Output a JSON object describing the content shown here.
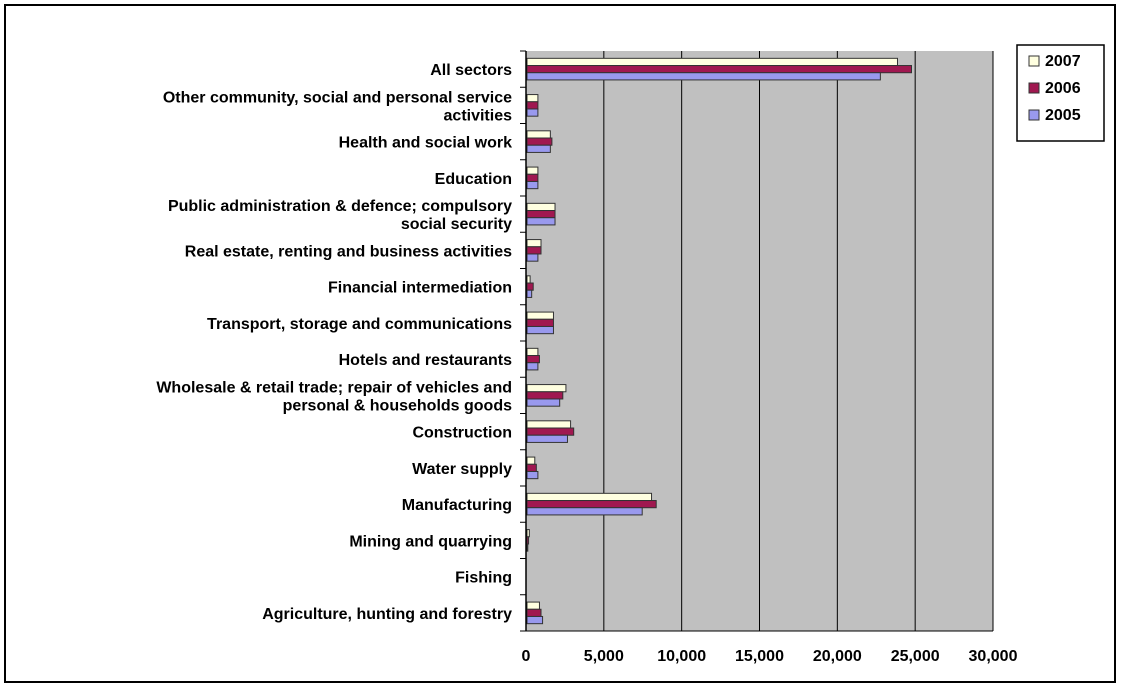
{
  "chart_data": {
    "type": "bar",
    "orientation": "horizontal",
    "categories": [
      [
        "All sectors"
      ],
      [
        "Other community, social and personal service",
        "activities"
      ],
      [
        "Health and social work"
      ],
      [
        "Education"
      ],
      [
        "Public administration & defence; compulsory",
        "social security"
      ],
      [
        "Real estate, renting and business activities"
      ],
      [
        "Financial intermediation"
      ],
      [
        "Transport, storage and communications"
      ],
      [
        "Hotels and restaurants"
      ],
      [
        "Wholesale & retail trade; repair of vehicles and",
        "personal & households goods"
      ],
      [
        "Construction"
      ],
      [
        "Water supply"
      ],
      [
        "Manufacturing"
      ],
      [
        "Mining and quarrying"
      ],
      [
        "Fishing"
      ],
      [
        "Agriculture, hunting and forestry"
      ]
    ],
    "series": [
      {
        "name": "2007",
        "color": "#ffffe0",
        "values": [
          23800,
          700,
          1500,
          700,
          1800,
          900,
          200,
          1700,
          700,
          2500,
          2800,
          500,
          8000,
          150,
          0,
          800
        ]
      },
      {
        "name": "2006",
        "color": "#a01850",
        "values": [
          24700,
          700,
          1600,
          700,
          1800,
          900,
          400,
          1700,
          800,
          2300,
          3000,
          600,
          8300,
          100,
          0,
          900
        ]
      },
      {
        "name": "2005",
        "color": "#9999ee",
        "values": [
          22700,
          700,
          1500,
          700,
          1800,
          700,
          300,
          1700,
          700,
          2100,
          2600,
          700,
          7400,
          50,
          0,
          1000
        ]
      }
    ],
    "xlim": [
      0,
      30000
    ],
    "xticks": [
      "0",
      "5,000",
      "10,000",
      "15,000",
      "20,000",
      "25,000",
      "30,000"
    ],
    "legend_order": [
      "2007",
      "2006",
      "2005"
    ],
    "legend_position": "top-right",
    "plot_background": "#c0c0c0",
    "grid": true
  }
}
